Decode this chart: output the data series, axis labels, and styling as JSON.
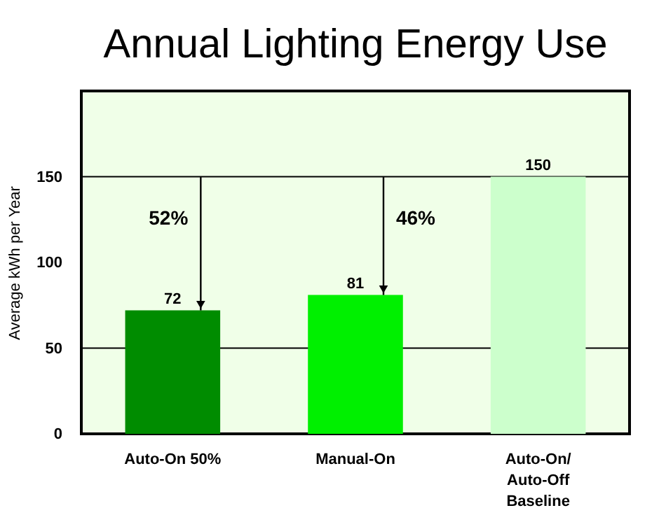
{
  "chart_data": {
    "type": "bar",
    "title": "Annual Lighting Energy Use",
    "ylabel": "Average kWh per Year",
    "categories": [
      "Auto-On 50%",
      "Manual-On",
      "Auto-On/\nAuto-Off\nBaseline"
    ],
    "values": [
      72,
      81,
      150
    ],
    "colors": [
      "#008c00",
      "#00f000",
      "#ccffcc"
    ],
    "data_labels": true,
    "ylim": [
      0,
      200
    ],
    "yticks": [
      0,
      50,
      100,
      150
    ],
    "ref_lines": [
      {
        "axis": "y",
        "value": 50,
        "color": "#000000"
      },
      {
        "axis": "y",
        "value": 150,
        "color": "#000000"
      }
    ],
    "annotations": [
      "52%",
      "46%"
    ]
  }
}
